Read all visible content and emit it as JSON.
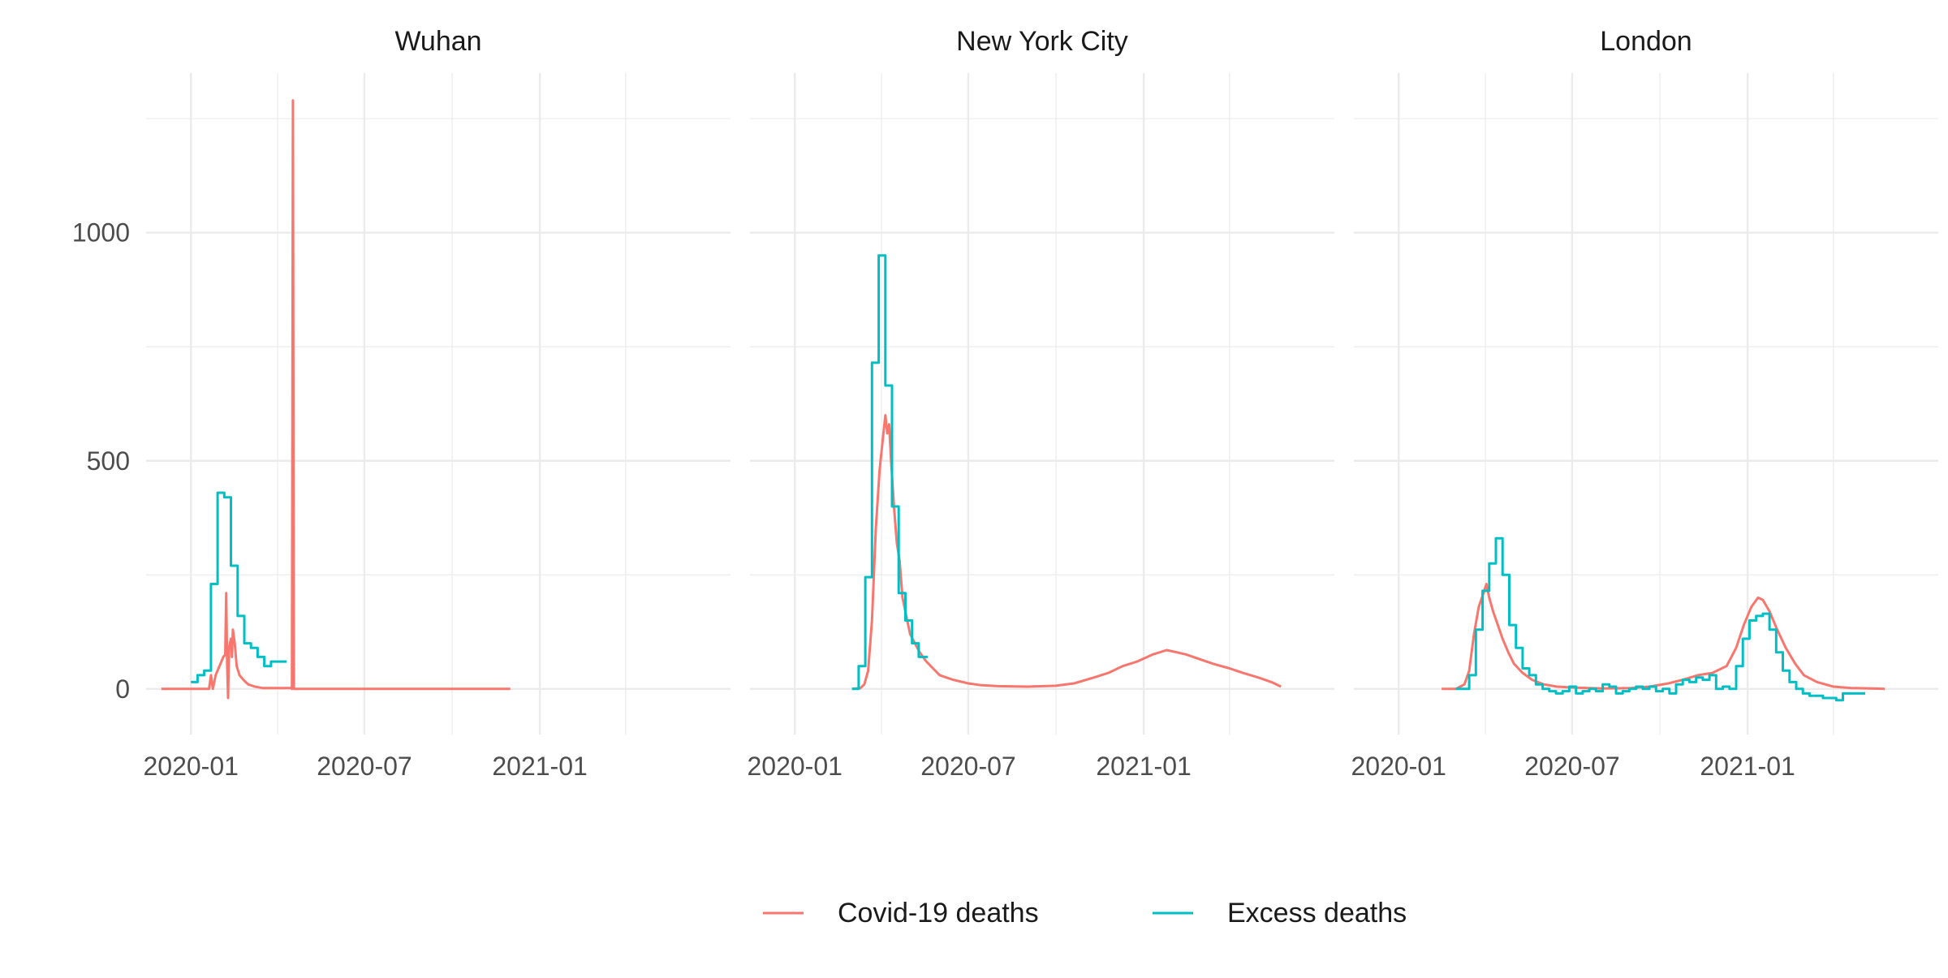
{
  "chart_data": {
    "type": "line",
    "facet_by": "city",
    "shared_y_axis": true,
    "ylim": [
      -100,
      1350
    ],
    "y_ticks": [
      0,
      500,
      1000
    ],
    "x_ticks": [
      "2020-01",
      "2020-07",
      "2021-01"
    ],
    "xlim": [
      "2019-11-15",
      "2021-07-20"
    ],
    "grid": true,
    "legend_position": "bottom",
    "legend": [
      {
        "name": "Covid-19 deaths",
        "color": "#F8766D"
      },
      {
        "name": "Excess deaths",
        "color": "#00BFC4"
      }
    ],
    "panels": [
      {
        "title": "Wuhan",
        "series": [
          {
            "name": "Covid-19 deaths",
            "color": "#F8766D",
            "step": false,
            "points": [
              [
                "2019-12-01",
                0
              ],
              [
                "2020-01-20",
                0
              ],
              [
                "2020-01-22",
                30
              ],
              [
                "2020-01-24",
                0
              ],
              [
                "2020-01-27",
                30
              ],
              [
                "2020-01-31",
                50
              ],
              [
                "2020-02-04",
                70
              ],
              [
                "2020-02-06",
                75
              ],
              [
                "2020-02-07",
                210
              ],
              [
                "2020-02-08",
                60
              ],
              [
                "2020-02-09",
                -20
              ],
              [
                "2020-02-10",
                90
              ],
              [
                "2020-02-12",
                110
              ],
              [
                "2020-02-13",
                70
              ],
              [
                "2020-02-14",
                130
              ],
              [
                "2020-02-16",
                100
              ],
              [
                "2020-02-18",
                50
              ],
              [
                "2020-02-21",
                30
              ],
              [
                "2020-02-25",
                20
              ],
              [
                "2020-03-01",
                10
              ],
              [
                "2020-03-08",
                5
              ],
              [
                "2020-03-16",
                2
              ],
              [
                "2020-04-15",
                2
              ],
              [
                "2020-04-16",
                0
              ],
              [
                "2020-04-17",
                1290
              ],
              [
                "2020-04-18",
                0
              ],
              [
                "2020-12-01",
                0
              ]
            ]
          },
          {
            "name": "Excess deaths",
            "color": "#00BFC4",
            "step": true,
            "points": [
              [
                "2020-01-01",
                15
              ],
              [
                "2020-01-08",
                30
              ],
              [
                "2020-01-15",
                40
              ],
              [
                "2020-01-22",
                230
              ],
              [
                "2020-01-29",
                430
              ],
              [
                "2020-02-05",
                420
              ],
              [
                "2020-02-12",
                270
              ],
              [
                "2020-02-19",
                160
              ],
              [
                "2020-02-26",
                100
              ],
              [
                "2020-03-04",
                90
              ],
              [
                "2020-03-11",
                70
              ],
              [
                "2020-03-18",
                50
              ],
              [
                "2020-03-25",
                60
              ],
              [
                "2020-04-01",
                60
              ]
            ]
          }
        ]
      },
      {
        "title": "New York City",
        "series": [
          {
            "name": "Covid-19 deaths",
            "color": "#F8766D",
            "step": false,
            "points": [
              [
                "2020-03-01",
                0
              ],
              [
                "2020-03-10",
                2
              ],
              [
                "2020-03-14",
                10
              ],
              [
                "2020-03-18",
                40
              ],
              [
                "2020-03-22",
                150
              ],
              [
                "2020-03-26",
                350
              ],
              [
                "2020-03-30",
                480
              ],
              [
                "2020-04-03",
                560
              ],
              [
                "2020-04-05",
                600
              ],
              [
                "2020-04-07",
                560
              ],
              [
                "2020-04-09",
                580
              ],
              [
                "2020-04-11",
                500
              ],
              [
                "2020-04-14",
                400
              ],
              [
                "2020-04-17",
                320
              ],
              [
                "2020-04-20",
                280
              ],
              [
                "2020-04-23",
                200
              ],
              [
                "2020-04-27",
                160
              ],
              [
                "2020-05-01",
                120
              ],
              [
                "2020-05-06",
                100
              ],
              [
                "2020-05-11",
                80
              ],
              [
                "2020-05-18",
                60
              ],
              [
                "2020-05-25",
                45
              ],
              [
                "2020-06-01",
                30
              ],
              [
                "2020-06-15",
                20
              ],
              [
                "2020-07-01",
                12
              ],
              [
                "2020-07-15",
                8
              ],
              [
                "2020-08-01",
                6
              ],
              [
                "2020-09-01",
                5
              ],
              [
                "2020-10-01",
                7
              ],
              [
                "2020-10-20",
                12
              ],
              [
                "2020-11-10",
                25
              ],
              [
                "2020-11-25",
                35
              ],
              [
                "2020-12-10",
                50
              ],
              [
                "2020-12-25",
                60
              ],
              [
                "2021-01-10",
                75
              ],
              [
                "2021-01-25",
                85
              ],
              [
                "2021-02-05",
                80
              ],
              [
                "2021-02-15",
                75
              ],
              [
                "2021-03-01",
                65
              ],
              [
                "2021-03-15",
                55
              ],
              [
                "2021-04-01",
                45
              ],
              [
                "2021-04-15",
                35
              ],
              [
                "2021-05-01",
                25
              ],
              [
                "2021-05-15",
                15
              ],
              [
                "2021-05-25",
                5
              ]
            ]
          },
          {
            "name": "Excess deaths",
            "color": "#00BFC4",
            "step": true,
            "points": [
              [
                "2020-03-01",
                0
              ],
              [
                "2020-03-08",
                50
              ],
              [
                "2020-03-15",
                245
              ],
              [
                "2020-03-22",
                715
              ],
              [
                "2020-03-29",
                950
              ],
              [
                "2020-04-05",
                665
              ],
              [
                "2020-04-12",
                400
              ],
              [
                "2020-04-19",
                210
              ],
              [
                "2020-04-26",
                150
              ],
              [
                "2020-05-03",
                100
              ],
              [
                "2020-05-10",
                70
              ]
            ]
          }
        ]
      },
      {
        "title": "London",
        "series": [
          {
            "name": "Covid-19 deaths",
            "color": "#F8766D",
            "step": false,
            "points": [
              [
                "2020-02-15",
                0
              ],
              [
                "2020-03-01",
                0
              ],
              [
                "2020-03-10",
                10
              ],
              [
                "2020-03-15",
                40
              ],
              [
                "2020-03-20",
                120
              ],
              [
                "2020-03-25",
                180
              ],
              [
                "2020-03-30",
                210
              ],
              [
                "2020-04-02",
                230
              ],
              [
                "2020-04-05",
                200
              ],
              [
                "2020-04-09",
                170
              ],
              [
                "2020-04-14",
                140
              ],
              [
                "2020-04-19",
                110
              ],
              [
                "2020-04-25",
                80
              ],
              [
                "2020-05-01",
                55
              ],
              [
                "2020-05-10",
                35
              ],
              [
                "2020-05-20",
                20
              ],
              [
                "2020-06-01",
                10
              ],
              [
                "2020-06-15",
                5
              ],
              [
                "2020-07-01",
                3
              ],
              [
                "2020-08-01",
                1
              ],
              [
                "2020-09-01",
                2
              ],
              [
                "2020-09-20",
                5
              ],
              [
                "2020-10-10",
                12
              ],
              [
                "2020-10-25",
                20
              ],
              [
                "2020-11-10",
                30
              ],
              [
                "2020-11-25",
                35
              ],
              [
                "2020-12-10",
                50
              ],
              [
                "2020-12-20",
                90
              ],
              [
                "2020-12-28",
                140
              ],
              [
                "2021-01-05",
                180
              ],
              [
                "2021-01-12",
                200
              ],
              [
                "2021-01-17",
                195
              ],
              [
                "2021-01-24",
                170
              ],
              [
                "2021-02-01",
                130
              ],
              [
                "2021-02-10",
                90
              ],
              [
                "2021-02-20",
                55
              ],
              [
                "2021-03-01",
                30
              ],
              [
                "2021-03-15",
                15
              ],
              [
                "2021-04-01",
                5
              ],
              [
                "2021-04-20",
                2
              ],
              [
                "2021-05-10",
                1
              ],
              [
                "2021-05-25",
                0
              ]
            ]
          },
          {
            "name": "Excess deaths",
            "color": "#00BFC4",
            "step": true,
            "points": [
              [
                "2020-03-01",
                0
              ],
              [
                "2020-03-08",
                0
              ],
              [
                "2020-03-15",
                30
              ],
              [
                "2020-03-22",
                130
              ],
              [
                "2020-03-29",
                215
              ],
              [
                "2020-04-05",
                275
              ],
              [
                "2020-04-12",
                330
              ],
              [
                "2020-04-19",
                250
              ],
              [
                "2020-04-26",
                140
              ],
              [
                "2020-05-03",
                90
              ],
              [
                "2020-05-10",
                45
              ],
              [
                "2020-05-17",
                30
              ],
              [
                "2020-05-24",
                10
              ],
              [
                "2020-05-31",
                0
              ],
              [
                "2020-06-07",
                -5
              ],
              [
                "2020-06-14",
                -10
              ],
              [
                "2020-06-21",
                -5
              ],
              [
                "2020-06-28",
                5
              ],
              [
                "2020-07-05",
                -10
              ],
              [
                "2020-07-12",
                -5
              ],
              [
                "2020-07-19",
                0
              ],
              [
                "2020-07-26",
                -5
              ],
              [
                "2020-08-02",
                10
              ],
              [
                "2020-08-09",
                5
              ],
              [
                "2020-08-16",
                -10
              ],
              [
                "2020-08-23",
                -5
              ],
              [
                "2020-08-30",
                0
              ],
              [
                "2020-09-06",
                5
              ],
              [
                "2020-09-13",
                0
              ],
              [
                "2020-09-20",
                5
              ],
              [
                "2020-09-27",
                -5
              ],
              [
                "2020-10-04",
                0
              ],
              [
                "2020-10-11",
                -10
              ],
              [
                "2020-10-18",
                10
              ],
              [
                "2020-10-25",
                20
              ],
              [
                "2020-11-01",
                15
              ],
              [
                "2020-11-08",
                25
              ],
              [
                "2020-11-15",
                20
              ],
              [
                "2020-11-22",
                30
              ],
              [
                "2020-11-29",
                0
              ],
              [
                "2020-12-06",
                5
              ],
              [
                "2020-12-13",
                0
              ],
              [
                "2020-12-20",
                50
              ],
              [
                "2020-12-27",
                110
              ],
              [
                "2021-01-03",
                150
              ],
              [
                "2021-01-10",
                160
              ],
              [
                "2021-01-17",
                165
              ],
              [
                "2021-01-24",
                130
              ],
              [
                "2021-01-31",
                80
              ],
              [
                "2021-02-07",
                40
              ],
              [
                "2021-02-14",
                15
              ],
              [
                "2021-02-21",
                0
              ],
              [
                "2021-02-28",
                -10
              ],
              [
                "2021-03-07",
                -15
              ],
              [
                "2021-03-14",
                -15
              ],
              [
                "2021-03-21",
                -20
              ],
              [
                "2021-03-28",
                -20
              ],
              [
                "2021-04-04",
                -25
              ],
              [
                "2021-04-11",
                -10
              ],
              [
                "2021-04-18",
                -10
              ],
              [
                "2021-04-25",
                -10
              ]
            ]
          }
        ]
      }
    ]
  }
}
